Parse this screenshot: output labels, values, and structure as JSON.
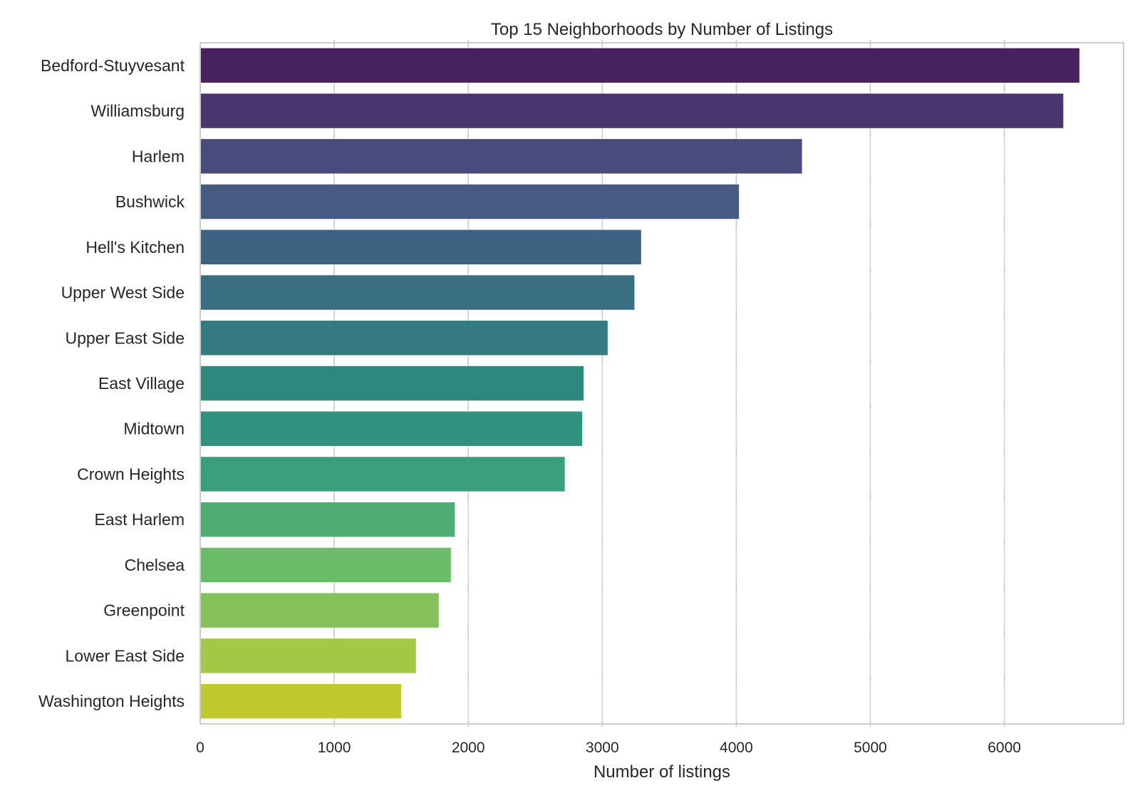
{
  "chart_data": {
    "type": "bar",
    "orientation": "horizontal",
    "title": "Top 15 Neighborhoods by Number of Listings",
    "xlabel": "Number of listings",
    "ylabel": "",
    "xlim": [
      0,
      6890
    ],
    "xticks": [
      0,
      1000,
      2000,
      3000,
      4000,
      5000,
      6000
    ],
    "grid": "vertical",
    "categories": [
      "Bedford-Stuyvesant",
      "Williamsburg",
      "Harlem",
      "Bushwick",
      "Hell's Kitchen",
      "Upper West Side",
      "Upper East Side",
      "East Village",
      "Midtown",
      "Crown Heights",
      "East Harlem",
      "Chelsea",
      "Greenpoint",
      "Lower East Side",
      "Washington Heights"
    ],
    "values": [
      6560,
      6440,
      4490,
      4020,
      3290,
      3240,
      3040,
      2860,
      2850,
      2720,
      1900,
      1870,
      1780,
      1610,
      1500
    ],
    "colors": [
      "#48215f",
      "#4a356e",
      "#4a4b7d",
      "#455b82",
      "#3e6382",
      "#3a6f81",
      "#357a80",
      "#2e887e",
      "#2f917e",
      "#3aa07b",
      "#4fac73",
      "#6bbb68",
      "#86c25b",
      "#a3c846",
      "#c0c930"
    ]
  }
}
